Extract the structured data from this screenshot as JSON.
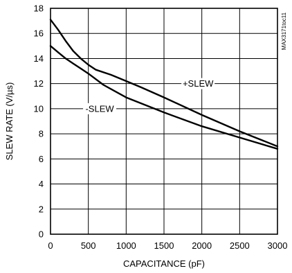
{
  "chart_data": {
    "type": "line",
    "xlabel": "CAPACITANCE (pF)",
    "ylabel": "SLEW RATE (V/µs)",
    "xlim": [
      0,
      3000
    ],
    "ylim": [
      0,
      18
    ],
    "xticks": [
      0,
      500,
      1000,
      1500,
      2000,
      2500,
      3000
    ],
    "yticks": [
      0,
      2,
      4,
      6,
      8,
      10,
      12,
      14,
      16,
      18
    ],
    "grid": true,
    "side_code": "MAX3171toc11",
    "series": [
      {
        "name": "+SLEW",
        "x": [
          0,
          100,
          200,
          300,
          400,
          500,
          600,
          800,
          1000,
          1200,
          1500,
          2000,
          2500,
          3000
        ],
        "y": [
          17.1,
          16.3,
          15.4,
          14.6,
          14.0,
          13.5,
          13.1,
          12.7,
          12.2,
          11.7,
          10.9,
          9.5,
          8.2,
          7.0
        ]
      },
      {
        "name": "-SLEW",
        "x": [
          0,
          100,
          200,
          300,
          400,
          500,
          700,
          1000,
          1500,
          2000,
          2500,
          3000
        ],
        "y": [
          15.0,
          14.5,
          14.0,
          13.6,
          13.2,
          12.8,
          11.9,
          10.9,
          9.7,
          8.6,
          7.7,
          6.8
        ]
      }
    ]
  }
}
